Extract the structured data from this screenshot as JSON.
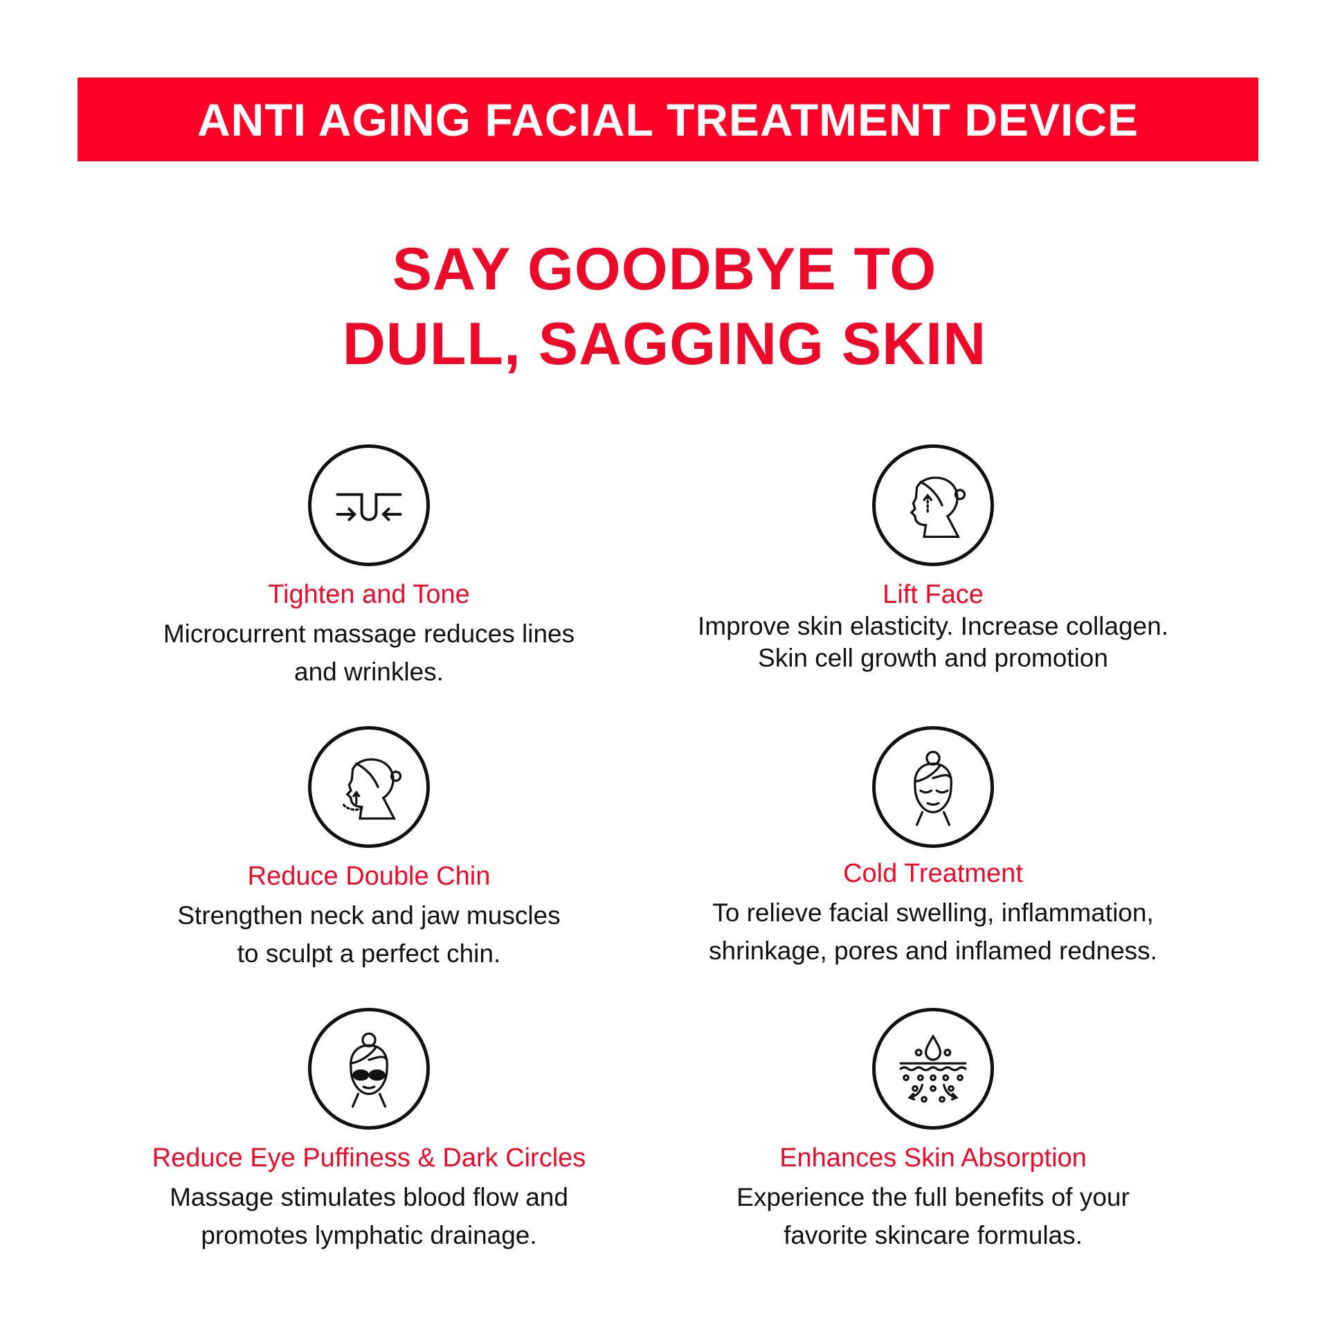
{
  "banner": {
    "title": "ANTI AGING FACIAL TREATMENT DEVICE",
    "color": "#ff0028"
  },
  "headline": {
    "line1": "SAY GOODBYE TO",
    "line2": "DULL, SAGGING SKIN",
    "color": "#ec0a2a"
  },
  "features": [
    {
      "icon": "pore-tighten-icon",
      "title": "Tighten and Tone",
      "line1": "Microcurrent massage reduces lines",
      "line2": "and wrinkles."
    },
    {
      "icon": "face-lift-icon",
      "title": "Lift Face",
      "line1": "Improve skin elasticity. Increase collagen.",
      "line2": "Skin cell growth and promotion"
    },
    {
      "icon": "double-chin-icon",
      "title": "Reduce Double Chin",
      "line1": "Strengthen neck and jaw muscles",
      "line2": "to sculpt a perfect chin."
    },
    {
      "icon": "cold-face-icon",
      "title": "Cold Treatment",
      "line1": "To relieve facial swelling, inflammation,",
      "line2": "shrinkage, pores and inflamed redness."
    },
    {
      "icon": "eye-patch-icon",
      "title": "Reduce Eye Puffiness & Dark Circles",
      "line1": "Massage stimulates blood flow and",
      "line2": "promotes lymphatic drainage."
    },
    {
      "icon": "skin-absorption-icon",
      "title": "Enhances Skin Absorption",
      "line1": "Experience the full benefits of your",
      "line2": "favorite skincare formulas."
    }
  ]
}
